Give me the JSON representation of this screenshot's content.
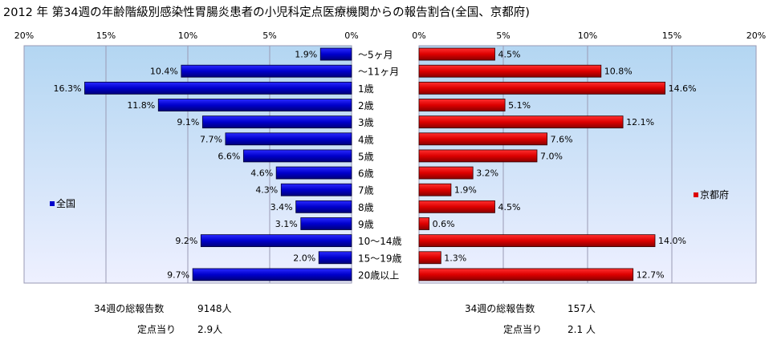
{
  "chart_data": {
    "type": "bar",
    "title": "2012 年 第34週の年齢階級別感染性胃腸炎患者の小児科定点医療機関からの報告割合(全国、京都府)",
    "categories": [
      "～5ヶ月",
      "～11ヶ月",
      "1歳",
      "2歳",
      "3歳",
      "4歳",
      "5歳",
      "6歳",
      "7歳",
      "8歳",
      "9歳",
      "10～14歳",
      "15～19歳",
      "20歳以上"
    ],
    "x_ticks": [
      "20%",
      "15%",
      "10%",
      "5%",
      "0%"
    ],
    "x_ticks_right": [
      "0%",
      "5%",
      "10%",
      "15%",
      "20%"
    ],
    "xlim": [
      0,
      20
    ],
    "grid": true,
    "series": [
      {
        "name": "全国",
        "color": "#0000cc",
        "values": [
          1.9,
          10.4,
          16.3,
          11.8,
          9.1,
          7.7,
          6.6,
          4.6,
          4.3,
          3.4,
          3.1,
          9.2,
          2.0,
          9.7
        ],
        "labels": [
          "1.9%",
          "10.4%",
          "16.3%",
          "11.8%",
          "9.1%",
          "7.7%",
          "6.6%",
          "4.6%",
          "4.3%",
          "3.4%",
          "3.1%",
          "9.2%",
          "2.0%",
          "9.7%"
        ]
      },
      {
        "name": "京都府",
        "color": "#dd0000",
        "values": [
          4.5,
          10.8,
          14.6,
          5.1,
          12.1,
          7.6,
          7.0,
          3.2,
          1.9,
          4.5,
          0.6,
          14.0,
          1.3,
          12.7
        ],
        "labels": [
          "4.5%",
          "10.8%",
          "14.6%",
          "5.1%",
          "12.1%",
          "7.6%",
          "7.0%",
          "3.2%",
          "1.9%",
          "4.5%",
          "0.6%",
          "14.0%",
          "1.3%",
          "12.7%"
        ]
      }
    ]
  },
  "footer": {
    "left": {
      "total_label": "34週の総報告数",
      "total_value": "9148人",
      "per_label": "定点当り",
      "per_value": "2.9人"
    },
    "right": {
      "total_label": "34週の総報告数",
      "total_value": "157人",
      "per_label": "定点当り",
      "per_value": "2.1 人"
    }
  },
  "colors": {
    "panel_top": "#b3d6f2",
    "panel_bottom": "#eef0ff",
    "grid": "#9a9ab4",
    "left_bar": "#0000cc",
    "right_bar": "#dd0000"
  }
}
